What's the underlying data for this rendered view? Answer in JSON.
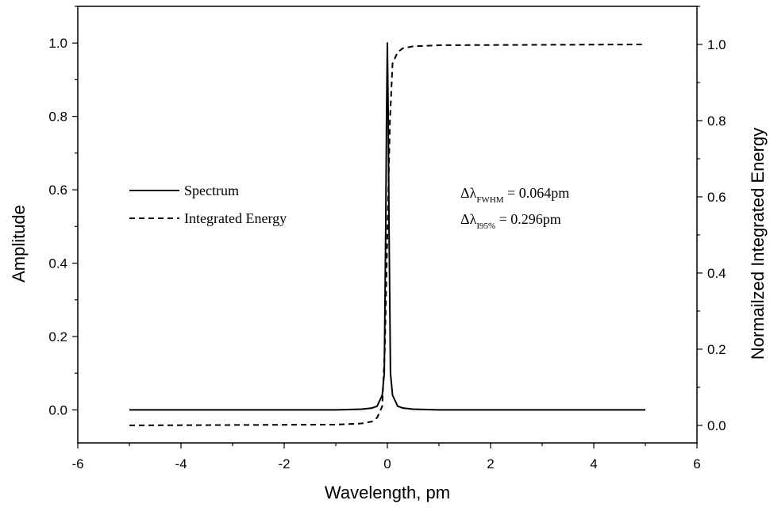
{
  "chart_data": {
    "type": "line",
    "xlabel": "Wavelength, pm",
    "ylabel": "Amplitude",
    "y2label": "Normailzed Integrated Energy",
    "xlim": [
      -6,
      6
    ],
    "ylim": [
      -0.09,
      1.1
    ],
    "y2lim": [
      -0.046,
      1.1
    ],
    "x_ticks": [
      "-6",
      "-4",
      "-2",
      "0",
      "2",
      "4",
      "6"
    ],
    "y_ticks": [
      "0.0",
      "0.2",
      "0.4",
      "0.6",
      "0.8",
      "1.0"
    ],
    "y2_ticks": [
      "0.0",
      "0.2",
      "0.4",
      "0.6",
      "0.8",
      "1.0"
    ],
    "grid": false,
    "legend_position": "middle-left",
    "series": [
      {
        "name": "Spectrum",
        "axis": "left",
        "style": "solid",
        "x": [
          -5,
          -1,
          -0.5,
          -0.3,
          -0.2,
          -0.1,
          -0.06,
          -0.032,
          -0.016,
          0,
          0.016,
          0.032,
          0.06,
          0.1,
          0.2,
          0.3,
          0.5,
          1,
          5
        ],
        "y": [
          0,
          0,
          0.002,
          0.005,
          0.01,
          0.04,
          0.1,
          0.5,
          0.8,
          1.0,
          0.8,
          0.5,
          0.1,
          0.04,
          0.01,
          0.005,
          0.002,
          0,
          0
        ]
      },
      {
        "name": "Integrated Energy",
        "axis": "right",
        "style": "dashed",
        "x": [
          -5,
          -1,
          -0.5,
          -0.3,
          -0.2,
          -0.1,
          -0.05,
          0,
          0.05,
          0.1,
          0.2,
          0.3,
          0.5,
          1,
          5
        ],
        "y": [
          0,
          0.002,
          0.005,
          0.01,
          0.02,
          0.05,
          0.2,
          0.5,
          0.8,
          0.95,
          0.98,
          0.99,
          0.995,
          0.998,
          1.0
        ]
      }
    ],
    "annotations": [
      {
        "symbol": "Δλ",
        "subscript": "FWHM",
        "text": " = 0.064pm"
      },
      {
        "symbol": "Δλ",
        "subscript": "I95%",
        "text": "   = 0.296pm"
      }
    ]
  }
}
